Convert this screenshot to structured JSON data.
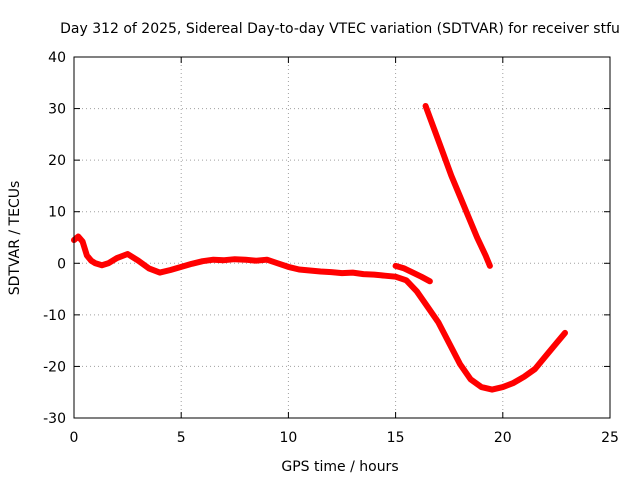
{
  "chart_data": {
    "type": "scatter",
    "title": "Day 312 of 2025, Sidereal Day-to-day VTEC variation (SDTVAR) for receiver stfu",
    "xlabel": "GPS time / hours",
    "ylabel": "SDTVAR / TECUs",
    "xlim": [
      0,
      25
    ],
    "ylim": [
      -30,
      40
    ],
    "xticks": [
      0,
      5,
      10,
      15,
      20,
      25
    ],
    "yticks": [
      -30,
      -20,
      -10,
      0,
      10,
      20,
      30,
      40
    ],
    "xtick_labels": [
      "0",
      "5",
      "10",
      "15",
      "20",
      "25"
    ],
    "ytick_labels": [
      "-30",
      "-20",
      "-10",
      "0",
      "10",
      "20",
      "30",
      "40"
    ],
    "grid": true,
    "series_color": "#ff0000",
    "series": [
      {
        "name": "track-1",
        "points": [
          [
            0.0,
            4.5
          ],
          [
            0.2,
            5.2
          ],
          [
            0.4,
            4.2
          ],
          [
            0.6,
            1.5
          ],
          [
            0.8,
            0.5
          ],
          [
            1.0,
            0.0
          ],
          [
            1.3,
            -0.4
          ],
          [
            1.6,
            0.0
          ],
          [
            2.0,
            1.0
          ],
          [
            2.5,
            1.8
          ],
          [
            3.0,
            0.5
          ],
          [
            3.5,
            -1.0
          ],
          [
            4.0,
            -1.8
          ],
          [
            4.5,
            -1.3
          ],
          [
            5.0,
            -0.7
          ],
          [
            5.5,
            -0.1
          ],
          [
            6.0,
            0.4
          ],
          [
            6.5,
            0.7
          ],
          [
            7.0,
            0.6
          ],
          [
            7.5,
            0.8
          ],
          [
            8.0,
            0.7
          ],
          [
            8.5,
            0.5
          ],
          [
            9.0,
            0.7
          ],
          [
            9.5,
            0.0
          ],
          [
            10.0,
            -0.7
          ],
          [
            10.5,
            -1.2
          ],
          [
            11.0,
            -1.4
          ],
          [
            11.5,
            -1.6
          ],
          [
            12.0,
            -1.7
          ],
          [
            12.5,
            -1.9
          ],
          [
            13.0,
            -1.8
          ],
          [
            13.5,
            -2.1
          ],
          [
            14.0,
            -2.2
          ],
          [
            14.5,
            -2.4
          ],
          [
            15.0,
            -2.6
          ],
          [
            15.5,
            -3.3
          ],
          [
            16.0,
            -5.5
          ],
          [
            16.5,
            -8.5
          ],
          [
            17.0,
            -11.5
          ],
          [
            17.5,
            -15.5
          ],
          [
            18.0,
            -19.5
          ],
          [
            18.5,
            -22.5
          ],
          [
            19.0,
            -24.0
          ],
          [
            19.5,
            -24.5
          ],
          [
            20.0,
            -24.0
          ],
          [
            20.5,
            -23.2
          ],
          [
            21.0,
            -22.0
          ],
          [
            21.5,
            -20.5
          ],
          [
            22.0,
            -18.0
          ],
          [
            22.5,
            -15.5
          ],
          [
            22.9,
            -13.5
          ]
        ]
      },
      {
        "name": "track-2",
        "points": [
          [
            15.0,
            -0.5
          ],
          [
            15.4,
            -1.0
          ],
          [
            15.8,
            -1.8
          ],
          [
            16.2,
            -2.6
          ],
          [
            16.6,
            -3.5
          ]
        ]
      },
      {
        "name": "track-3",
        "points": [
          [
            16.4,
            30.5
          ],
          [
            16.8,
            26.0
          ],
          [
            17.2,
            21.5
          ],
          [
            17.6,
            17.0
          ],
          [
            18.0,
            13.0
          ],
          [
            18.4,
            9.0
          ],
          [
            18.8,
            5.0
          ],
          [
            19.2,
            1.5
          ],
          [
            19.4,
            -0.5
          ]
        ]
      }
    ]
  }
}
